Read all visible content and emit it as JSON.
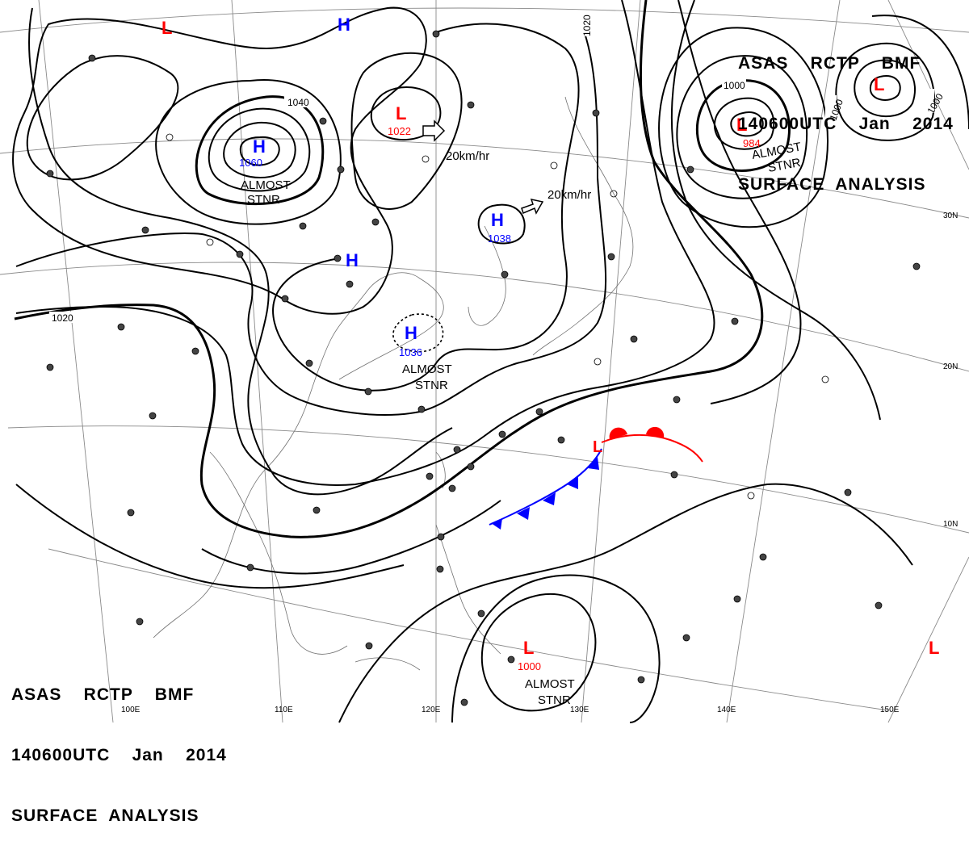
{
  "header": {
    "line1": "ASAS    RCTP    BMF",
    "line2": "140600UTC    Jan    2014",
    "line3": "SURFACE  ANALYSIS"
  },
  "footer": {
    "line1": "ASAS    RCTP    BMF",
    "line2": "140600UTC    Jan    2014",
    "line3": "SURFACE  ANALYSIS"
  },
  "pressure_systems": [
    {
      "type": "H",
      "value": "1060",
      "color": "#0000ff"
    },
    {
      "type": "H",
      "value": "1038",
      "color": "#0000ff"
    },
    {
      "type": "H",
      "value": "1036",
      "color": "#0000ff"
    },
    {
      "type": "H",
      "value": "",
      "color": "#0000ff"
    },
    {
      "type": "H",
      "value": "",
      "color": "#0000ff"
    },
    {
      "type": "L",
      "value": "1022",
      "color": "#ff0000"
    },
    {
      "type": "L",
      "value": "984",
      "color": "#ff0000"
    },
    {
      "type": "L",
      "value": "1000",
      "color": "#ff0000"
    },
    {
      "type": "L",
      "value": "",
      "color": "#ff0000"
    },
    {
      "type": "L",
      "value": "",
      "color": "#ff0000"
    },
    {
      "type": "L",
      "value": "",
      "color": "#ff0000"
    },
    {
      "type": "L",
      "value": "",
      "color": "#ff0000"
    }
  ],
  "isobar_labels": [
    "1040",
    "1020",
    "1020",
    "1000",
    "1000",
    "1000"
  ],
  "annotations": {
    "almost_stnr": [
      "ALMOST",
      "STNR"
    ],
    "motion_1": "20km/hr",
    "motion_2": "20km/hr"
  },
  "longitudes": [
    "100E",
    "110E",
    "120E",
    "130E",
    "140E",
    "150E"
  ],
  "latitudes": [
    "30N",
    "20N",
    "10N"
  ],
  "colors": {
    "high": "#0000ff",
    "low": "#ff0000",
    "cold_front": "#0000ff",
    "warm_front": "#ff0000",
    "isobar": "#000000",
    "grid": "#808080"
  }
}
